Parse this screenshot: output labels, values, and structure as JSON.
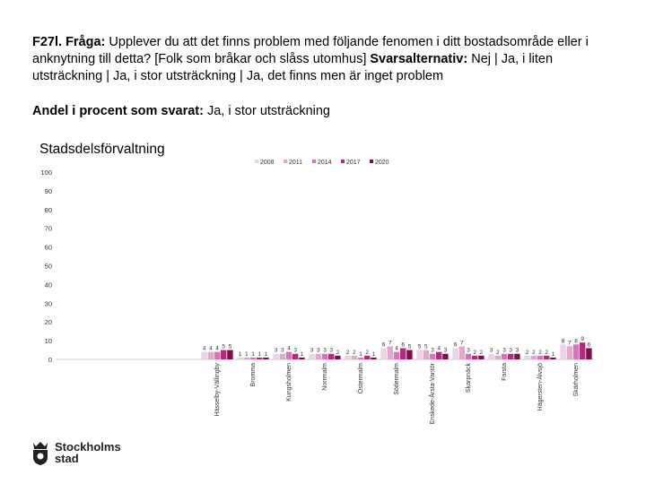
{
  "header": {
    "title_prefix": "F27l. Fråga:",
    "title_question": " Upplever du att det finns problem med följande fenomen i ditt bostadsområde eller i anknytning till detta? [Folk som bråkar och slåss utomhus] ",
    "title_alt_label": "Svarsalternativ:",
    "title_alts": " Nej | Ja, i liten utsträckning | Ja, i stor utsträckning | Ja, det finns men är inget problem",
    "subtitle_label": "Andel i procent som svarat:",
    "subtitle_value": " Ja, i stor utsträckning"
  },
  "chart_title": "Stadsdelsförvaltning",
  "logo": {
    "line1": "Stockholms",
    "line2": "stad"
  },
  "colors": {
    "2008": "#ead3e3",
    "2011": "#e2a9cd",
    "2014": "#d577b4",
    "2017": "#b8287f",
    "2020": "#880a4d"
  },
  "chart_data": {
    "type": "bar",
    "title": "Stadsdelsförvaltning",
    "xlabel": "",
    "ylabel": "",
    "ylim": [
      0,
      100
    ],
    "yticks": [
      0,
      10,
      20,
      30,
      40,
      50,
      60,
      70,
      80,
      90,
      100
    ],
    "grid": false,
    "legend_position": "top-right",
    "categories": [
      "Hässelby-Vällingby",
      "Bromma",
      "Kungsholmen",
      "Norrmalm",
      "Östermalm",
      "Södermalm",
      "Enskede-Årsta-Vantör",
      "Skarpnäck",
      "Farsta",
      "Hägersten-Älvsjö",
      "Skärholmen"
    ],
    "series": [
      {
        "name": "2008",
        "values": [
          4,
          1,
          3,
          3,
          2,
          6,
          5,
          6,
          3,
          2,
          8
        ]
      },
      {
        "name": "2011",
        "values": [
          4,
          1,
          3,
          3,
          2,
          7,
          5,
          7,
          2,
          2,
          7
        ]
      },
      {
        "name": "2014",
        "values": [
          4,
          1,
          4,
          3,
          1,
          4,
          3,
          3,
          3,
          2,
          8
        ]
      },
      {
        "name": "2017",
        "values": [
          5,
          1,
          3,
          3,
          2,
          6,
          4,
          2,
          3,
          2,
          9
        ]
      },
      {
        "name": "2020",
        "values": [
          5,
          1,
          1,
          2,
          1,
          5,
          3,
          2,
          3,
          1,
          6
        ]
      }
    ]
  }
}
